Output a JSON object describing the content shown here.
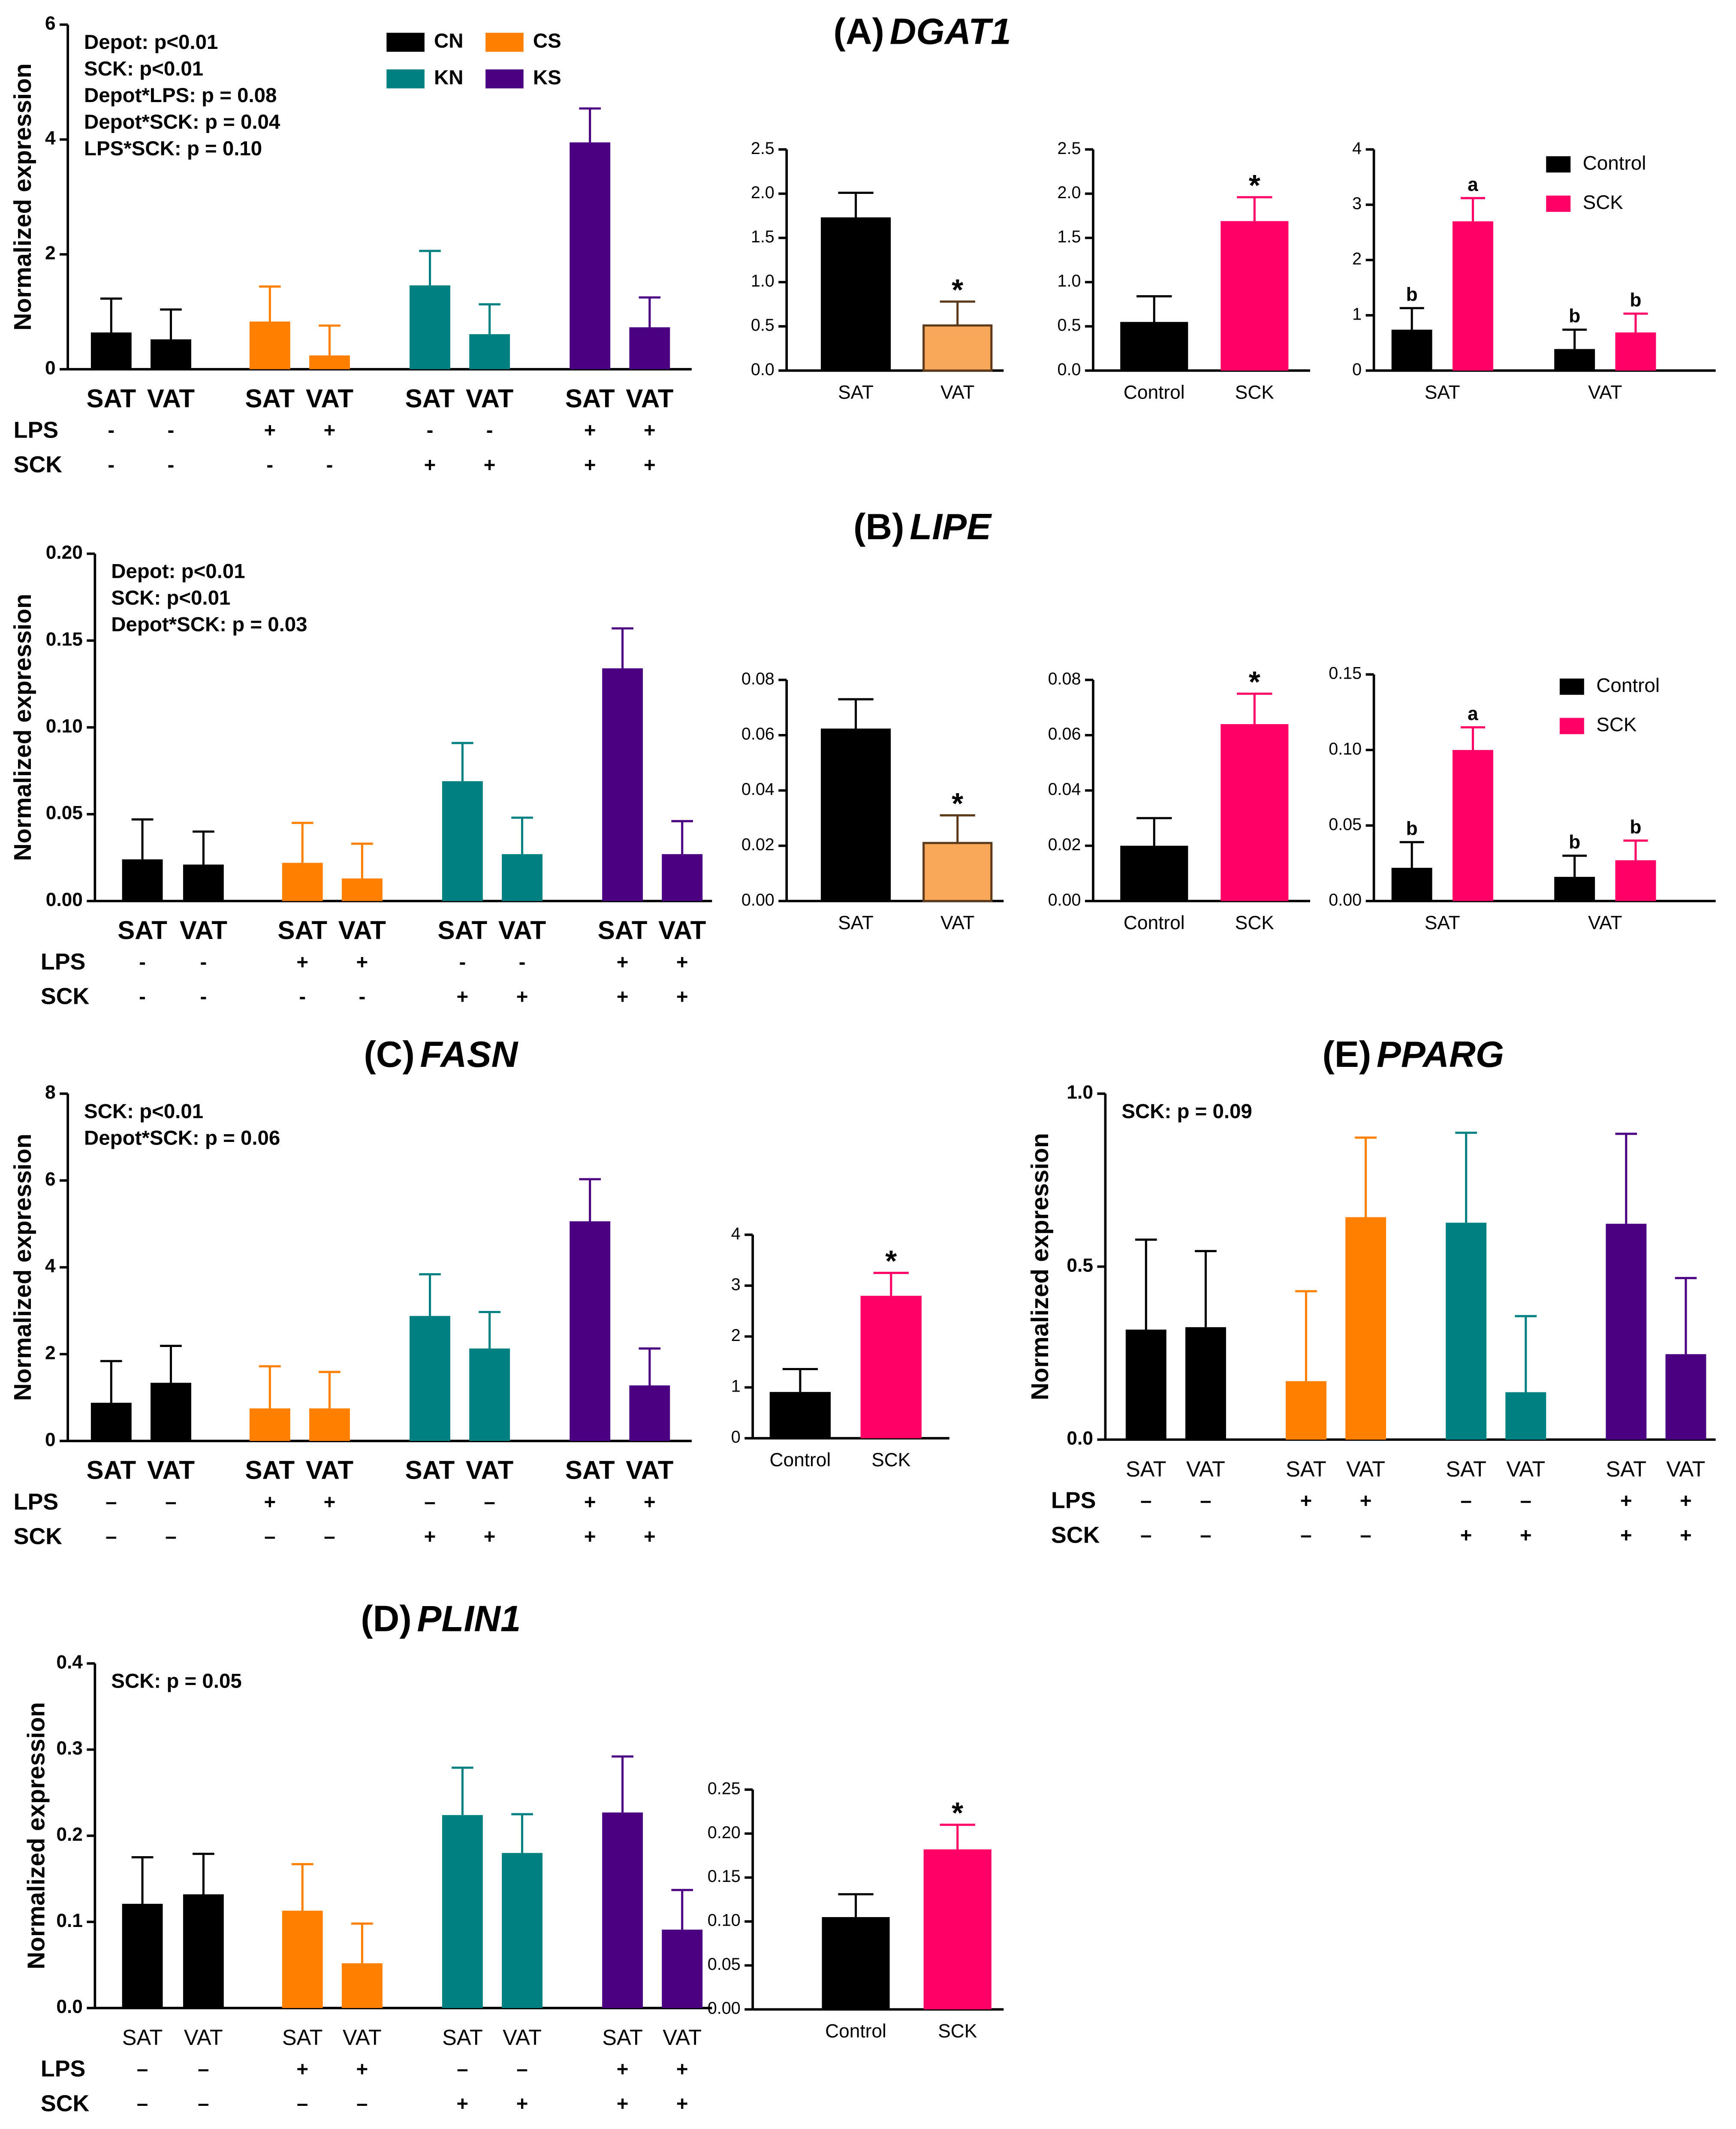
{
  "chart_data": [
    {
      "type": "bar",
      "title_label": "(A)",
      "title": "DGAT1",
      "ylabel": "Normalized expression",
      "categories": [
        "SAT",
        "VAT",
        "SAT",
        "VAT",
        "SAT",
        "VAT",
        "SAT",
        "VAT"
      ],
      "values": [
        0.64,
        0.52,
        0.83,
        0.24,
        1.46,
        0.61,
        3.95,
        0.73
      ],
      "errors": [
        0.59,
        0.52,
        0.61,
        0.52,
        0.6,
        0.52,
        0.59,
        0.52
      ],
      "colors": [
        "#000000",
        "#000000",
        "#ff8000",
        "#ff8000",
        "#008080",
        "#008080",
        "#4b0082",
        "#4b0082"
      ],
      "ylim": [
        0,
        6
      ],
      "yticks": [
        0,
        2,
        4,
        6
      ],
      "annotations": [
        "Depot: p<0.01",
        "SCK: p<0.01",
        "Depot*LPS: p = 0.08",
        "Depot*SCK: p = 0.04",
        "LPS*SCK: p = 0.10"
      ],
      "legend": [
        {
          "name": "CN",
          "color": "#000000"
        },
        {
          "name": "CS",
          "color": "#ff8000"
        },
        {
          "name": "KN",
          "color": "#008080"
        },
        {
          "name": "KS",
          "color": "#4b0082"
        }
      ],
      "rows": [
        {
          "name": "LPS",
          "values": [
            "-",
            "-",
            "+",
            "+",
            "-",
            "-",
            "+",
            "+"
          ]
        },
        {
          "name": "SCK",
          "values": [
            "-",
            "-",
            "-",
            "-",
            "+",
            "+",
            "+",
            "+"
          ]
        }
      ]
    },
    {
      "type": "bar",
      "categories": [
        "SAT",
        "VAT"
      ],
      "values": [
        1.72,
        0.51
      ],
      "errors": [
        0.29,
        0.27
      ],
      "colors": [
        "#000000",
        "#f9a85a"
      ],
      "edgecolors": [
        "#000000",
        "#5b3b1c"
      ],
      "significance": [
        null,
        "*"
      ],
      "ylim": [
        0,
        2.5
      ],
      "yticks": [
        {
          "value": 0,
          "label": "0.0"
        },
        {
          "value": 0.5,
          "label": "0.5"
        },
        {
          "value": 1,
          "label": "1.0"
        },
        {
          "value": 1.5,
          "label": "1.5"
        },
        {
          "value": 2,
          "label": "2.0"
        },
        {
          "value": 2.5,
          "label": "2.5"
        }
      ]
    },
    {
      "type": "bar",
      "categories": [
        "Control",
        "SCK"
      ],
      "values": [
        0.55,
        1.69
      ],
      "errors": [
        0.29,
        0.27
      ],
      "colors": [
        "#000000",
        "#ff0066"
      ],
      "significance": [
        null,
        "*"
      ],
      "ylim": [
        0,
        2.5
      ],
      "yticks": [
        {
          "value": 0,
          "label": "0.0"
        },
        {
          "value": 0.5,
          "label": "0.5"
        },
        {
          "value": 1,
          "label": "1.0"
        },
        {
          "value": 1.5,
          "label": "1.5"
        },
        {
          "value": 2,
          "label": "2.0"
        },
        {
          "value": 2.5,
          "label": "2.5"
        }
      ]
    },
    {
      "type": "grouped_bar",
      "categories": [
        "SAT",
        "VAT"
      ],
      "series": [
        {
          "name": "Control",
          "color": "#000000",
          "values": [
            0.74,
            0.39
          ],
          "errors": [
            0.39,
            0.35
          ],
          "letters": [
            "b",
            "b"
          ]
        },
        {
          "name": "SCK",
          "color": "#ff0066",
          "values": [
            2.7,
            0.69
          ],
          "errors": [
            0.42,
            0.34
          ],
          "letters": [
            "a",
            "b"
          ]
        }
      ],
      "ylim": [
        0,
        4
      ],
      "yticks": [
        0,
        1,
        2,
        3,
        4
      ],
      "legend": true
    },
    {
      "type": "bar",
      "title_label": "(B)",
      "title": "LIPE",
      "ylabel": "Normalized expression",
      "categories": [
        "SAT",
        "VAT",
        "SAT",
        "VAT",
        "SAT",
        "VAT",
        "SAT",
        "VAT"
      ],
      "values": [
        0.024,
        0.021,
        0.022,
        0.013,
        0.069,
        0.027,
        0.134,
        0.027
      ],
      "errors": [
        0.023,
        0.019,
        0.023,
        0.02,
        0.022,
        0.021,
        0.023,
        0.019
      ],
      "colors": [
        "#000000",
        "#000000",
        "#ff8000",
        "#ff8000",
        "#008080",
        "#008080",
        "#4b0082",
        "#4b0082"
      ],
      "ylim": [
        0,
        0.2
      ],
      "yticks": [
        {
          "value": 0,
          "label": "0.00"
        },
        {
          "value": 0.05,
          "label": "0.05"
        },
        {
          "value": 0.1,
          "label": "0.10"
        },
        {
          "value": 0.15,
          "label": "0.15"
        },
        {
          "value": 0.2,
          "label": "0.20"
        }
      ],
      "annotations": [
        "Depot: p<0.01",
        "SCK: p<0.01",
        "Depot*SCK: p = 0.03"
      ],
      "rows": [
        {
          "name": "LPS",
          "values": [
            "-",
            "-",
            "+",
            "+",
            "-",
            "-",
            "+",
            "+"
          ]
        },
        {
          "name": "SCK",
          "values": [
            "-",
            "-",
            "-",
            "-",
            "+",
            "+",
            "+",
            "+"
          ]
        }
      ]
    },
    {
      "type": "bar",
      "categories": [
        "SAT",
        "VAT"
      ],
      "values": [
        0.062,
        0.021
      ],
      "errors": [
        0.011,
        0.01
      ],
      "colors": [
        "#000000",
        "#f9a85a"
      ],
      "edgecolors": [
        "#000000",
        "#5b3b1c"
      ],
      "significance": [
        null,
        "*"
      ],
      "ylim": [
        0,
        0.08
      ],
      "yticks": [
        {
          "value": 0,
          "label": "0.00"
        },
        {
          "value": 0.02,
          "label": "0.02"
        },
        {
          "value": 0.04,
          "label": "0.04"
        },
        {
          "value": 0.06,
          "label": "0.06"
        },
        {
          "value": 0.08,
          "label": "0.08"
        }
      ]
    },
    {
      "type": "bar",
      "categories": [
        "Control",
        "SCK"
      ],
      "values": [
        0.02,
        0.064
      ],
      "errors": [
        0.01,
        0.011
      ],
      "colors": [
        "#000000",
        "#ff0066"
      ],
      "significance": [
        null,
        "*"
      ],
      "ylim": [
        0,
        0.08
      ],
      "yticks": [
        {
          "value": 0,
          "label": "0.00"
        },
        {
          "value": 0.02,
          "label": "0.02"
        },
        {
          "value": 0.04,
          "label": "0.04"
        },
        {
          "value": 0.06,
          "label": "0.06"
        },
        {
          "value": 0.08,
          "label": "0.08"
        }
      ]
    },
    {
      "type": "grouped_bar",
      "categories": [
        "SAT",
        "VAT"
      ],
      "series": [
        {
          "name": "Control",
          "color": "#000000",
          "values": [
            0.022,
            0.016
          ],
          "errors": [
            0.017,
            0.014
          ],
          "letters": [
            "b",
            "b"
          ]
        },
        {
          "name": "SCK",
          "color": "#ff0066",
          "values": [
            0.1,
            0.027
          ],
          "errors": [
            0.015,
            0.013
          ],
          "letters": [
            "a",
            "b"
          ]
        }
      ],
      "ylim": [
        0,
        0.15
      ],
      "yticks": [
        {
          "value": 0,
          "label": "0.00"
        },
        {
          "value": 0.05,
          "label": "0.05"
        },
        {
          "value": 0.1,
          "label": "0.10"
        },
        {
          "value": 0.15,
          "label": "0.15"
        }
      ],
      "legend": true
    },
    {
      "type": "bar",
      "title_label": "(C)",
      "title": "FASN",
      "ylabel": "Normalized expression",
      "categories": [
        "SAT",
        "VAT",
        "SAT",
        "VAT",
        "SAT",
        "VAT",
        "SAT",
        "VAT"
      ],
      "values": [
        0.88,
        1.34,
        0.75,
        0.75,
        2.88,
        2.13,
        5.06,
        1.28
      ],
      "errors": [
        0.96,
        0.85,
        0.97,
        0.84,
        0.96,
        0.84,
        0.97,
        0.85
      ],
      "colors": [
        "#000000",
        "#000000",
        "#ff8000",
        "#ff8000",
        "#008080",
        "#008080",
        "#4b0082",
        "#4b0082"
      ],
      "ylim": [
        0,
        8
      ],
      "yticks": [
        0,
        2,
        4,
        6,
        8
      ],
      "annotations": [
        "SCK: p<0.01",
        "Depot*SCK: p = 0.06"
      ],
      "rows": [
        {
          "name": "LPS",
          "values": [
            "–",
            "–",
            "+",
            "+",
            "–",
            "–",
            "+",
            "+"
          ]
        },
        {
          "name": "SCK",
          "values": [
            "–",
            "–",
            "–",
            "–",
            "+",
            "+",
            "+",
            "+"
          ]
        }
      ]
    },
    {
      "type": "bar",
      "categories": [
        "Control",
        "SCK"
      ],
      "values": [
        0.91,
        2.8
      ],
      "errors": [
        0.45,
        0.45
      ],
      "colors": [
        "#000000",
        "#ff0066"
      ],
      "significance": [
        null,
        "*"
      ],
      "ylim": [
        0,
        4
      ],
      "yticks": [
        0,
        1,
        2,
        3,
        4
      ]
    },
    {
      "type": "bar",
      "title_label": "(E)",
      "title": "PPARG",
      "ylabel": "Normalized expression",
      "categories": [
        "SAT",
        "VAT",
        "SAT",
        "VAT",
        "SAT",
        "VAT",
        "SAT",
        "VAT"
      ],
      "values": [
        0.318,
        0.325,
        0.169,
        0.643,
        0.627,
        0.137,
        0.624,
        0.247
      ],
      "errors": [
        0.26,
        0.22,
        0.26,
        0.23,
        0.26,
        0.22,
        0.26,
        0.22
      ],
      "colors": [
        "#000000",
        "#000000",
        "#ff8000",
        "#ff8000",
        "#008080",
        "#008080",
        "#4b0082",
        "#4b0082"
      ],
      "ylim": [
        0,
        1
      ],
      "yticks": [
        {
          "value": 0,
          "label": "0.0"
        },
        {
          "value": 0.5,
          "label": "0.5"
        },
        {
          "value": 1,
          "label": "1.0"
        }
      ],
      "annotations": [
        "SCK: p = 0.09"
      ],
      "rows": [
        {
          "name": "LPS",
          "values": [
            "–",
            "–",
            "+",
            "+",
            "–",
            "–",
            "+",
            "+"
          ]
        },
        {
          "name": "SCK",
          "values": [
            "–",
            "–",
            "–",
            "–",
            "+",
            "+",
            "+",
            "+"
          ]
        }
      ]
    },
    {
      "type": "bar",
      "title_label": "(D)",
      "title": "PLIN1",
      "ylabel": "Normalized expression",
      "categories": [
        "SAT",
        "VAT",
        "SAT",
        "VAT",
        "SAT",
        "VAT",
        "SAT",
        "VAT"
      ],
      "values": [
        0.121,
        0.132,
        0.113,
        0.052,
        0.224,
        0.18,
        0.227,
        0.091
      ],
      "errors": [
        0.054,
        0.047,
        0.054,
        0.046,
        0.055,
        0.045,
        0.065,
        0.046
      ],
      "colors": [
        "#000000",
        "#000000",
        "#ff8000",
        "#ff8000",
        "#008080",
        "#008080",
        "#4b0082",
        "#4b0082"
      ],
      "ylim": [
        0,
        0.4
      ],
      "yticks": [
        {
          "value": 0,
          "label": "0.0"
        },
        {
          "value": 0.1,
          "label": "0.1"
        },
        {
          "value": 0.2,
          "label": "0.2"
        },
        {
          "value": 0.3,
          "label": "0.3"
        },
        {
          "value": 0.4,
          "label": "0.4"
        }
      ],
      "annotations": [
        "SCK: p = 0.05"
      ],
      "rows": [
        {
          "name": "LPS",
          "values": [
            "–",
            "–",
            "+",
            "+",
            "–",
            "–",
            "+",
            "+"
          ]
        },
        {
          "name": "SCK",
          "values": [
            "–",
            "–",
            "–",
            "–",
            "+",
            "+",
            "+",
            "+"
          ]
        }
      ]
    },
    {
      "type": "bar",
      "categories": [
        "Control",
        "SCK"
      ],
      "values": [
        0.105,
        0.182
      ],
      "errors": [
        0.026,
        0.028
      ],
      "colors": [
        "#000000",
        "#ff0066"
      ],
      "significance": [
        null,
        "*"
      ],
      "ylim": [
        0,
        0.25
      ],
      "yticks": [
        {
          "value": 0,
          "label": "0.00"
        },
        {
          "value": 0.05,
          "label": "0.05"
        },
        {
          "value": 0.1,
          "label": "0.10"
        },
        {
          "value": 0.15,
          "label": "0.15"
        },
        {
          "value": 0.2,
          "label": "0.20"
        },
        {
          "value": 0.25,
          "label": "0.25"
        }
      ]
    }
  ]
}
